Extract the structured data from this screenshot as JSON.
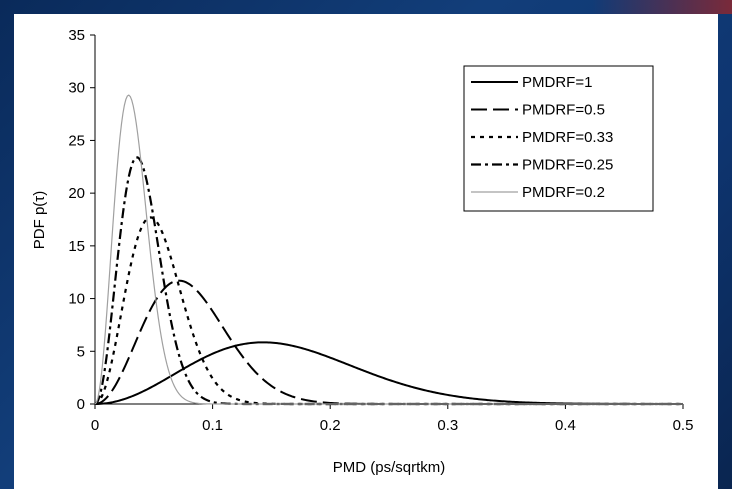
{
  "chart_data": {
    "type": "line",
    "title": "",
    "xlabel": "PMD (ps/sqrtkm)",
    "ylabel": "PDF p(τ)",
    "xlim": [
      0,
      0.5
    ],
    "ylim": [
      0,
      35
    ],
    "x_ticks": [
      "0",
      "0.1",
      "0.2",
      "0.3",
      "0.4",
      "0.5"
    ],
    "y_ticks": [
      "0",
      "5",
      "10",
      "15",
      "20",
      "25",
      "30",
      "35"
    ],
    "grid": false,
    "legend_position": "top-right",
    "series": [
      {
        "name": "PMDRF=1",
        "peak_x": 0.143,
        "peak_y": 5.85,
        "color": "#000000",
        "style": "solid"
      },
      {
        "name": "PMDRF=0.5",
        "peak_x": 0.0715,
        "peak_y": 11.7,
        "color": "#000000",
        "style": "long-dash"
      },
      {
        "name": "PMDRF=0.33",
        "peak_x": 0.0472,
        "peak_y": 17.7,
        "color": "#000000",
        "style": "dotted"
      },
      {
        "name": "PMDRF=0.25",
        "peak_x": 0.0357,
        "peak_y": 23.4,
        "color": "#000000",
        "style": "dash-dot"
      },
      {
        "name": "PMDRF=0.2",
        "peak_x": 0.0286,
        "peak_y": 29.3,
        "color": "#a0a0a0",
        "style": "solid-thin"
      }
    ]
  },
  "colors": {
    "slide_background": "#0e3570",
    "plot_background": "#ffffff",
    "axis": "#000000"
  }
}
